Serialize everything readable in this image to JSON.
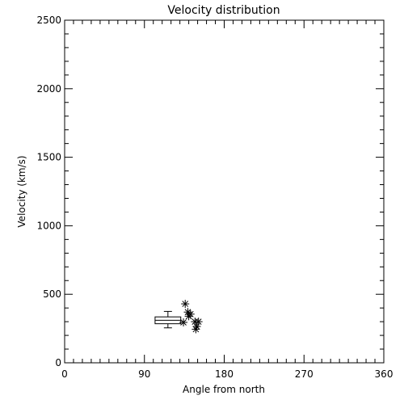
{
  "chart_data": {
    "type": "scatter",
    "title": "Velocity distribution",
    "xlabel": "Angle from north",
    "ylabel": "Velocity (km/s)",
    "xlim": [
      0,
      360
    ],
    "ylim": [
      0,
      2500
    ],
    "xticks": [
      0,
      90,
      180,
      270,
      360
    ],
    "yticks": [
      0,
      500,
      1000,
      1500,
      2000,
      2500
    ],
    "grid": false,
    "points": [
      {
        "x": 136,
        "y": 430
      },
      {
        "x": 139,
        "y": 370
      },
      {
        "x": 140,
        "y": 340
      },
      {
        "x": 142,
        "y": 355
      },
      {
        "x": 134,
        "y": 295
      },
      {
        "x": 147,
        "y": 300
      },
      {
        "x": 151,
        "y": 300
      },
      {
        "x": 149,
        "y": 265
      },
      {
        "x": 148,
        "y": 245
      }
    ],
    "boxplot": {
      "x_min": 102,
      "x_max": 131,
      "whisker_low": 255,
      "q1": 285,
      "median": 310,
      "q3": 335,
      "whisker_high": 375
    }
  }
}
